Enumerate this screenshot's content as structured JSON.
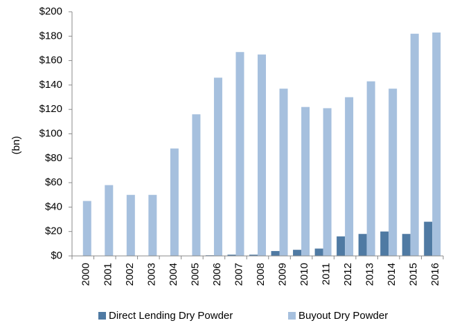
{
  "chart_data": {
    "type": "bar",
    "y_label": "(bn)",
    "categories": [
      "2000",
      "2001",
      "2002",
      "2003",
      "2004",
      "2005",
      "2006",
      "2007",
      "2008",
      "2009",
      "2010",
      "2011",
      "2012",
      "2013",
      "2014",
      "2015",
      "2016"
    ],
    "series": [
      {
        "name": "Direct Lending Dry Powder",
        "color": "#4f7aa3",
        "values": [
          0,
          0,
          0,
          0,
          0,
          0,
          0.5,
          1,
          1,
          4,
          5,
          6,
          16,
          18,
          20,
          18,
          28
        ]
      },
      {
        "name": "Buyout Dry Powder",
        "color": "#a6c0de",
        "values": [
          45,
          58,
          50,
          50,
          88,
          116,
          146,
          167,
          165,
          137,
          122,
          121,
          130,
          143,
          137,
          182,
          183
        ]
      }
    ],
    "ylim": [
      0,
      200
    ],
    "yticks": [
      {
        "value": 0,
        "label": "$0"
      },
      {
        "value": 20,
        "label": "$20"
      },
      {
        "value": 40,
        "label": "$40"
      },
      {
        "value": 60,
        "label": "$60"
      },
      {
        "value": 80,
        "label": "$80"
      },
      {
        "value": 100,
        "label": "$100"
      },
      {
        "value": 120,
        "label": "$120"
      },
      {
        "value": 140,
        "label": "$140"
      },
      {
        "value": 160,
        "label": "$160"
      },
      {
        "value": 180,
        "label": "$180"
      },
      {
        "value": 200,
        "label": "$200"
      }
    ],
    "legend": "bottom"
  }
}
